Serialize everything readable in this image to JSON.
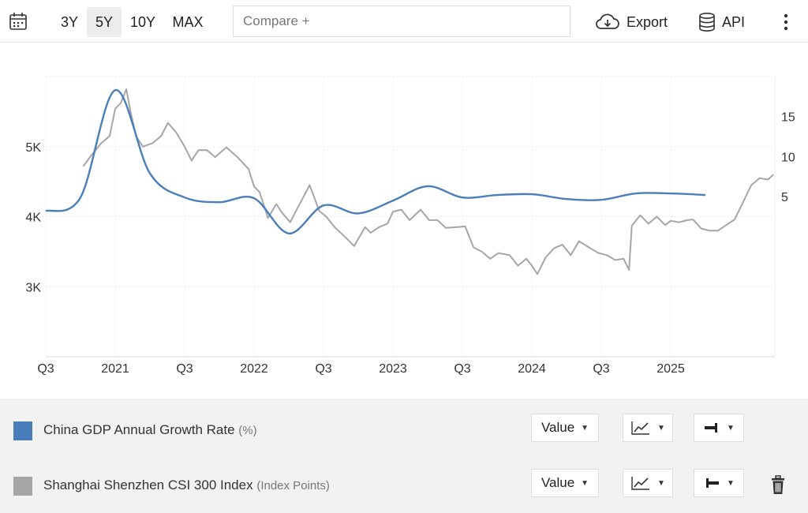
{
  "toolbar": {
    "calendar_icon": "calendar-icon",
    "ranges": [
      {
        "label": "3Y",
        "active": false
      },
      {
        "label": "5Y",
        "active": true
      },
      {
        "label": "10Y",
        "active": false
      },
      {
        "label": "MAX",
        "active": false
      }
    ],
    "compare_placeholder": "Compare +",
    "export_label": "Export",
    "api_label": "API",
    "more_icon": "more-vertical-icon"
  },
  "chart_data": {
    "type": "line",
    "x_tick_labels": [
      "Q3",
      "2021",
      "Q3",
      "2022",
      "Q3",
      "2023",
      "Q3",
      "2024",
      "Q3",
      "2025"
    ],
    "x_range": [
      2020.5,
      2025.75
    ],
    "left_axis": {
      "ticks": [
        3000,
        4000,
        5000
      ],
      "labels": [
        "3K",
        "4K",
        "5K"
      ],
      "range": [
        2000,
        6000
      ]
    },
    "right_axis": {
      "ticks": [
        5,
        10,
        15
      ],
      "labels": [
        "5",
        "10",
        "15"
      ],
      "range": [
        -15,
        20
      ]
    },
    "grid": true,
    "series": [
      {
        "name": "China GDP Annual Growth Rate",
        "unit": "%",
        "axis": "right",
        "color": "#4a7ebb",
        "x": [
          2020.5,
          2020.75,
          2021.0,
          2021.25,
          2021.5,
          2021.75,
          2022.0,
          2022.25,
          2022.5,
          2022.75,
          2023.0,
          2023.25,
          2023.5,
          2023.75,
          2024.0,
          2024.25,
          2024.5,
          2024.75,
          2025.0,
          2025.25
        ],
        "values": [
          3.2,
          4.9,
          18.3,
          7.9,
          4.9,
          4.3,
          4.8,
          0.4,
          3.9,
          2.9,
          4.5,
          6.3,
          4.9,
          5.2,
          5.3,
          4.7,
          4.6,
          5.4,
          5.4,
          5.2
        ]
      },
      {
        "name": "Shanghai Shenzhen CSI 300 Index",
        "unit": "Index Points",
        "axis": "left",
        "color": "#a6a6a6",
        "x": [
          2020.77,
          2020.83,
          2020.9,
          2020.96,
          2021.0,
          2021.04,
          2021.08,
          2021.11,
          2021.15,
          2021.2,
          2021.27,
          2021.33,
          2021.38,
          2021.44,
          2021.5,
          2021.55,
          2021.6,
          2021.66,
          2021.72,
          2021.8,
          2021.88,
          2021.96,
          2022.0,
          2022.04,
          2022.1,
          2022.16,
          2022.2,
          2022.26,
          2022.32,
          2022.4,
          2022.47,
          2022.52,
          2022.58,
          2022.66,
          2022.72,
          2022.8,
          2022.84,
          2022.9,
          2022.96,
          2023.0,
          2023.06,
          2023.12,
          2023.2,
          2023.26,
          2023.32,
          2023.38,
          2023.46,
          2023.52,
          2023.58,
          2023.64,
          2023.7,
          2023.76,
          2023.84,
          2023.9,
          2023.96,
          2024.0,
          2024.04,
          2024.1,
          2024.16,
          2024.22,
          2024.28,
          2024.34,
          2024.42,
          2024.48,
          2024.54,
          2024.6,
          2024.66,
          2024.7,
          2024.72,
          2024.78,
          2024.84,
          2024.9,
          2024.96,
          2025.0,
          2025.06,
          2025.12,
          2025.16,
          2025.22,
          2025.28,
          2025.34,
          2025.4,
          2025.46,
          2025.52,
          2025.58,
          2025.64,
          2025.7,
          2025.74
        ],
        "values": [
          4720,
          4880,
          5050,
          5150,
          5540,
          5620,
          5820,
          5500,
          5150,
          5000,
          5050,
          5150,
          5340,
          5200,
          5000,
          4800,
          4950,
          4950,
          4850,
          4990,
          4850,
          4680,
          4430,
          4350,
          3980,
          4180,
          4060,
          3920,
          4150,
          4450,
          4080,
          4000,
          3850,
          3700,
          3580,
          3850,
          3770,
          3850,
          3900,
          4070,
          4100,
          3950,
          4100,
          3950,
          3950,
          3840,
          3850,
          3860,
          3560,
          3500,
          3400,
          3480,
          3450,
          3300,
          3400,
          3300,
          3180,
          3420,
          3550,
          3600,
          3450,
          3650,
          3550,
          3480,
          3450,
          3380,
          3400,
          3240,
          3870,
          4020,
          3900,
          4000,
          3880,
          3940,
          3920,
          3950,
          3960,
          3830,
          3800,
          3800,
          3880,
          3960,
          4200,
          4450,
          4550,
          4530,
          4600
        ]
      }
    ]
  },
  "legend": {
    "series": [
      {
        "swatch_color": "#4a7ebb",
        "label": "China GDP Annual Growth Rate",
        "unit": "(%)",
        "value_label": "Value",
        "chart_type_icon": "line-chart-icon",
        "axis_icon": "axis-right-icon",
        "show_delete": false
      },
      {
        "swatch_color": "#a6a6a6",
        "label": "Shanghai Shenzhen CSI 300 Index",
        "unit": "(Index Points)",
        "value_label": "Value",
        "chart_type_icon": "line-chart-icon",
        "axis_icon": "axis-left-icon",
        "show_delete": true,
        "delete_icon": "trash-icon"
      }
    ]
  }
}
